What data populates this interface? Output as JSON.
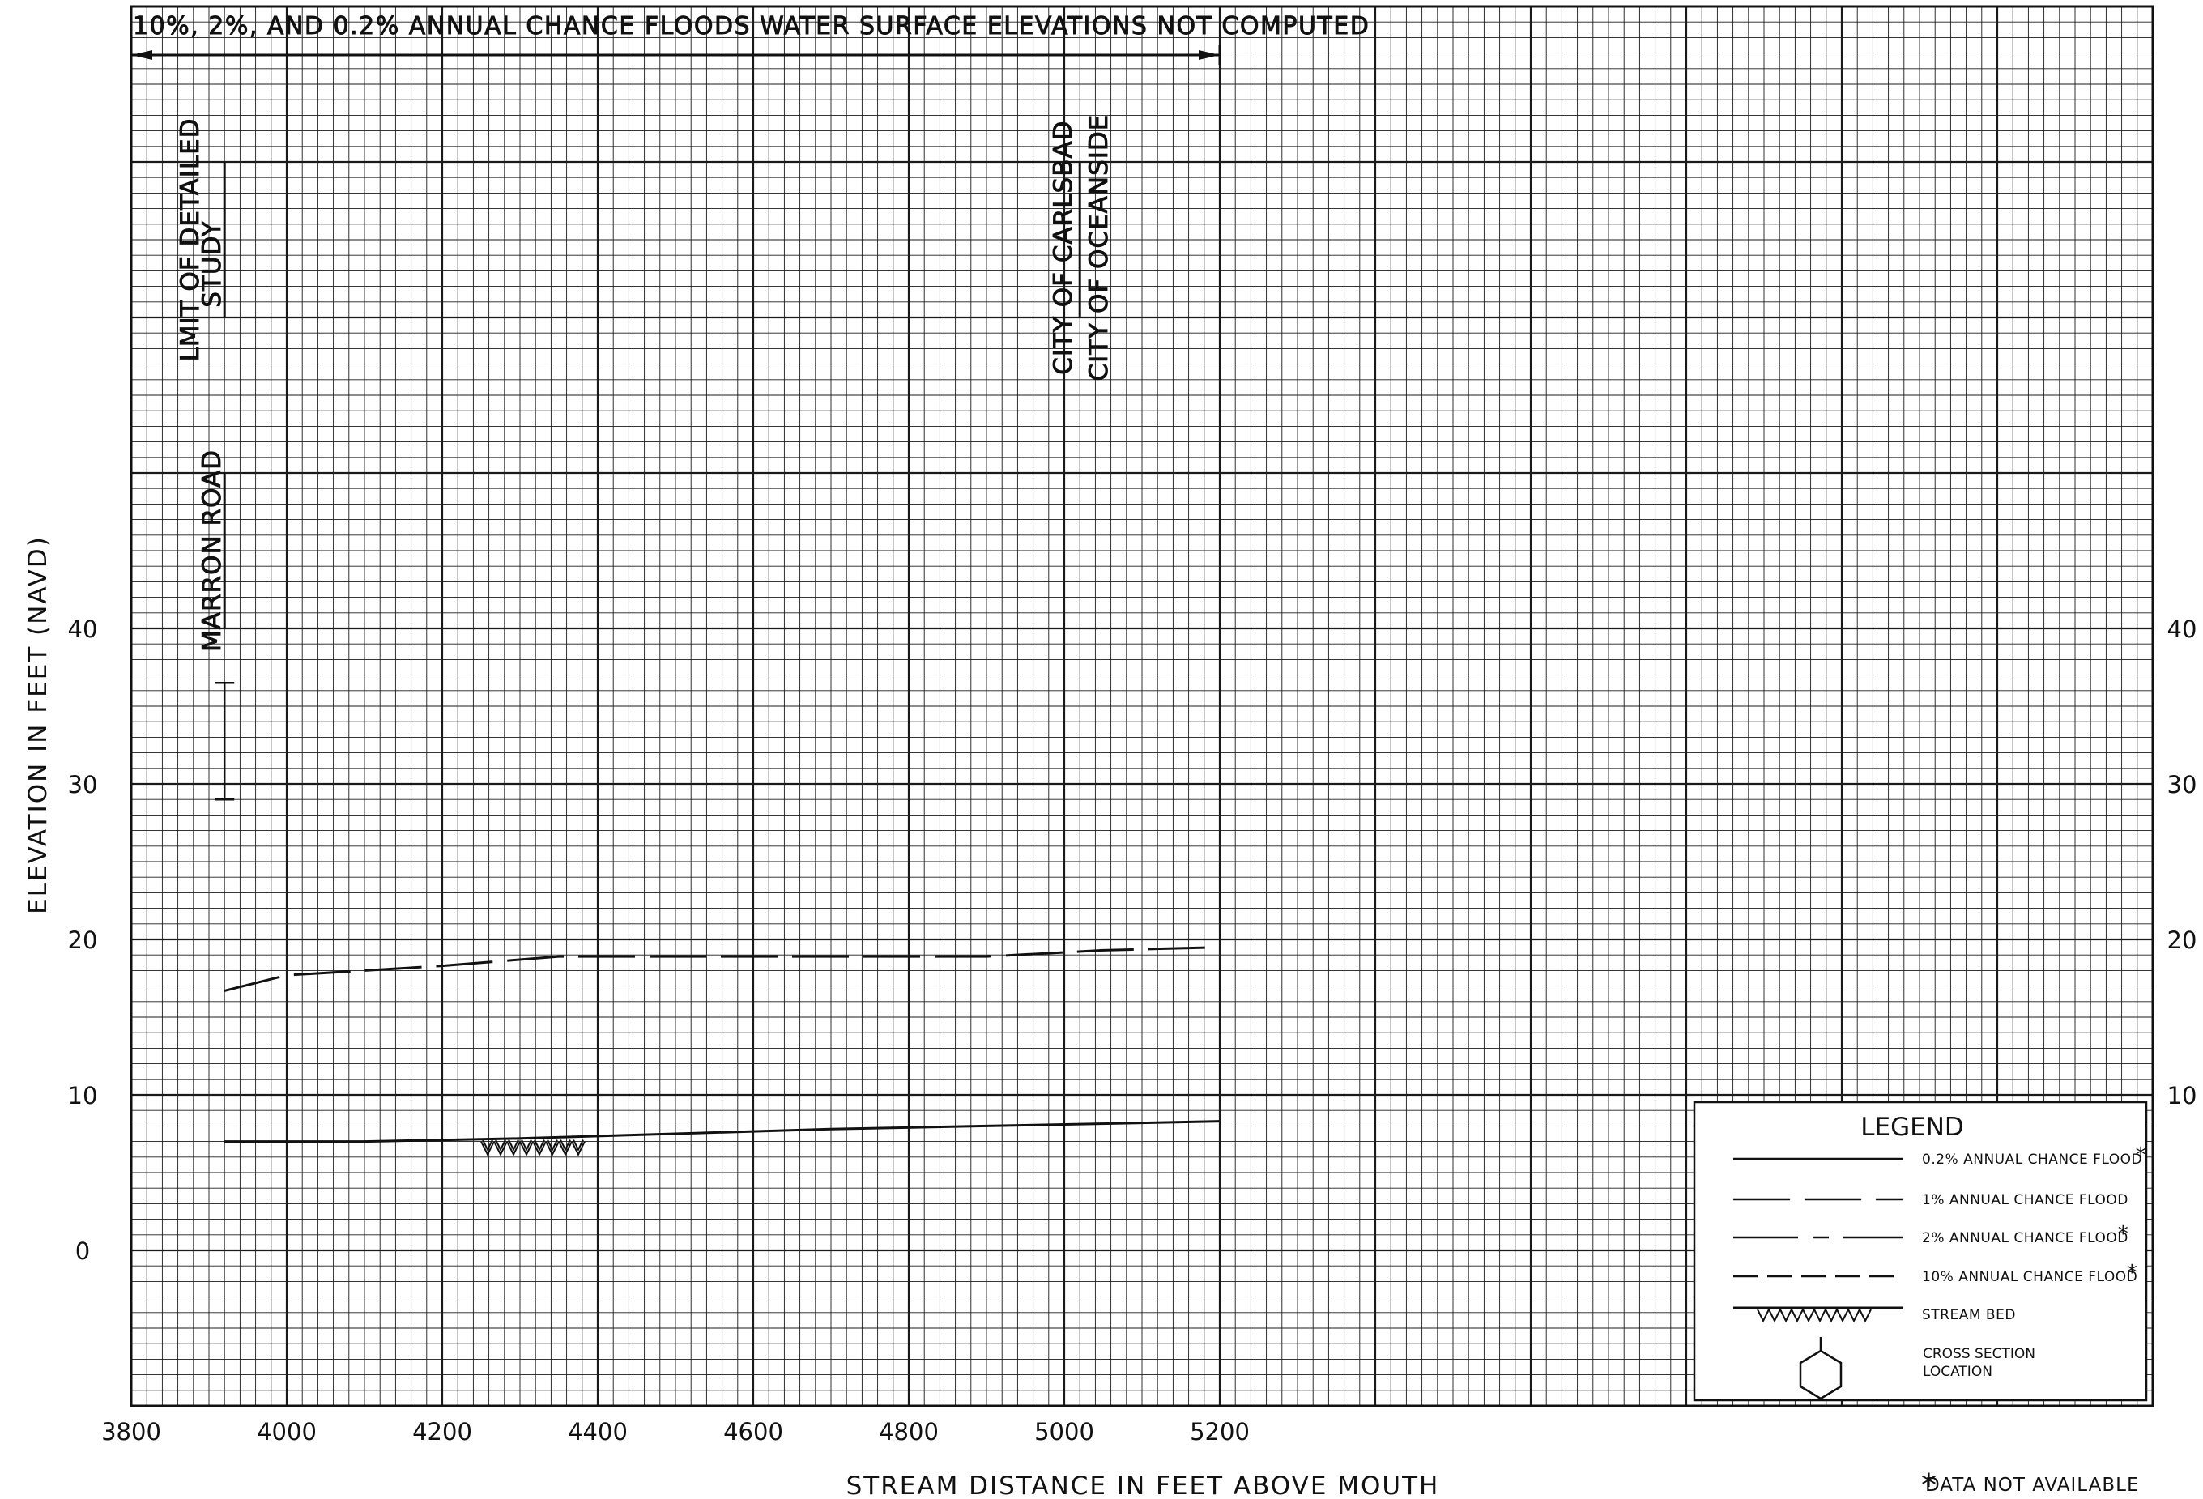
{
  "chart_data": {
    "type": "line",
    "xlabel": "STREAM DISTANCE IN FEET ABOVE MOUTH",
    "ylabel": "ELEVATION IN FEET (NAVD)",
    "xlim": [
      3800,
      6400
    ],
    "ylim": [
      -10,
      80
    ],
    "x_ticks": [
      3800,
      4000,
      4200,
      4400,
      4600,
      4800,
      5000,
      5200
    ],
    "x_tick_labels": [
      "3800",
      "4000",
      "4200",
      "4400",
      "4600",
      "4800",
      "5000",
      "5200"
    ],
    "y_ticks": [
      0,
      10,
      20,
      30,
      40
    ],
    "y_tick_labels_left": [
      "0",
      "10",
      "20",
      "30",
      "40"
    ],
    "y_tick_labels_right": [
      "10",
      "20",
      "30",
      "40"
    ],
    "grid": true,
    "minor_step_x": 20,
    "minor_step_y": 1,
    "major_step_x": 200,
    "major_step_y": 10,
    "series": [
      {
        "name": "0.2% ANNUAL CHANCE FLOOD",
        "style": "solid",
        "x": [
          3920,
          4100,
          4300,
          4500,
          4700,
          4900,
          5100,
          5200
        ],
        "y": [
          7.0,
          7.0,
          7.2,
          7.5,
          7.8,
          8.0,
          8.2,
          8.3
        ]
      },
      {
        "name": "1% ANNUAL CHANCE FLOOD",
        "style": "long-dash",
        "x": [
          3920,
          4000,
          4200,
          4350,
          4500,
          4700,
          4900,
          5050,
          5200
        ],
        "y": [
          16.7,
          17.7,
          18.3,
          18.9,
          18.9,
          18.9,
          18.9,
          19.3,
          19.5
        ]
      }
    ],
    "stream_bed": {
      "x_start": 4250,
      "x_end": 4390,
      "elevation": 7.0
    },
    "structure_marker": {
      "x": 3920,
      "y_low": 29,
      "y_high": 36.5
    },
    "annotations": {
      "banner": "10%, 2%, AND 0.2% ANNUAL CHANCE FLOODS WATER SURFACE ELEVATIONS NOT COMPUTED",
      "banner_x_range": [
        3800,
        5200
      ],
      "limit_label_line1": "LMIT OF DETAILED",
      "limit_label_line2": "STUDY",
      "limit_x": 3920,
      "road_label": "MARRON ROAD",
      "road_x": 3920,
      "city_left": "CITY OF CARLSBAD",
      "city_right": "CITY OF OCEANSIDE",
      "city_x": 5020
    },
    "legend": {
      "placement": "bottom-right",
      "title": "LEGEND",
      "items": [
        {
          "label": "0.2% ANNUAL CHANCE FLOOD",
          "style": "solid",
          "asterisk": true
        },
        {
          "label": "1% ANNUAL CHANCE FLOOD",
          "style": "long-dash",
          "asterisk": false
        },
        {
          "label": "2% ANNUAL CHANCE FLOOD",
          "style": "dash-dot",
          "asterisk": true
        },
        {
          "label": "10% ANNUAL CHANCE FLOOD",
          "style": "short-dash",
          "asterisk": true
        },
        {
          "label": "STREAM BED",
          "style": "bed",
          "asterisk": false
        }
      ],
      "cross_section_label_line1": "CROSS SECTION",
      "cross_section_label_line2": "LOCATION"
    },
    "footnote_mark": "*",
    "footnote": "DATA NOT AVAILABLE"
  }
}
